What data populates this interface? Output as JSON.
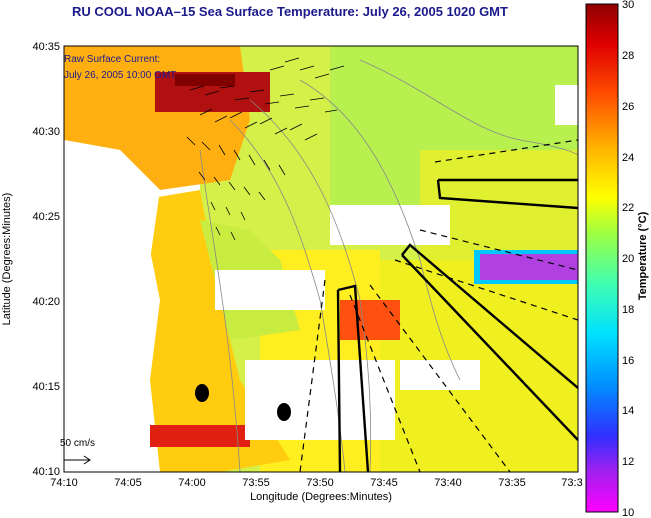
{
  "title": "RU COOL  NOAA–15  Sea Surface Temperature:  July 26, 2005 1020 GMT",
  "overlay": {
    "line1": "Raw Surface Current:",
    "line2": "July 26, 2005 10:00 GMT",
    "scale_label": "50 cm/s"
  },
  "axes": {
    "xlabel": "Longitude (Degrees:Minutes)",
    "ylabel": "Latitude (Degrees:Minutes)",
    "xticks": [
      "74:10",
      "74:05",
      "74:00",
      "73:55",
      "73:50",
      "73:45",
      "73:40",
      "73:35",
      "73:3"
    ],
    "yticks": [
      "40:35",
      "40:30",
      "40:25",
      "40:20",
      "40:15",
      "40:10"
    ]
  },
  "colorbar": {
    "label": "Temperature (°C)",
    "ticks": [
      "30",
      "28",
      "26",
      "24",
      "22",
      "20",
      "18",
      "16",
      "14",
      "12",
      "10"
    ],
    "range": [
      10,
      30
    ]
  },
  "colors": {
    "land": "#ffffff",
    "title": "#1a1a8c",
    "frame": "#000000"
  }
}
